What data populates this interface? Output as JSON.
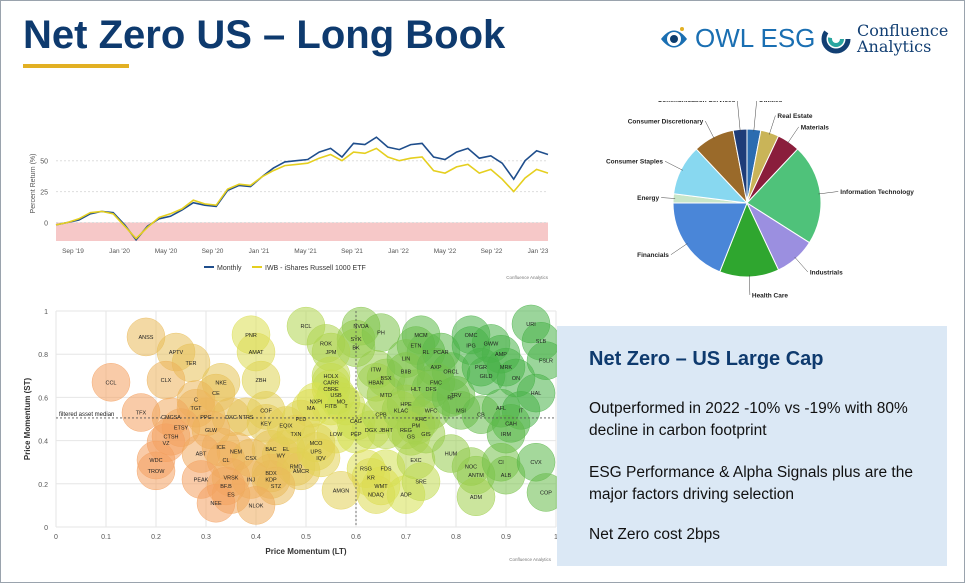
{
  "slide": {
    "title": "Net Zero US – Long Book",
    "logos": {
      "owl": "OWL ESG",
      "confluence_line1": "Confluence",
      "confluence_line2": "Analytics"
    },
    "accent_color": "#e2b023",
    "title_color": "#0e3a6e"
  },
  "textbox": {
    "heading": "Net Zero – US Large Cap",
    "paragraphs": [
      "Outperformed in 2022 -10% vs -19% with 80% decline in carbon footprint",
      "ESG Performance & Alpha Signals plus are the major factors driving selection",
      "Net Zero cost 2bps"
    ]
  },
  "chart_data": [
    {
      "type": "line",
      "ylabel": "Percent Return (%)",
      "y_ticks": [
        "0",
        "25",
        "50"
      ],
      "x_ticks": [
        "Sep '19",
        "Jan '20",
        "May '20",
        "Sep '20",
        "Jan '21",
        "May '21",
        "Sep '21",
        "Jan '22",
        "May '22",
        "Sep '22",
        "Jan '23"
      ],
      "x": [
        "2019-08",
        "2019-09",
        "2019-10",
        "2019-11",
        "2019-12",
        "2020-01",
        "2020-02",
        "2020-03",
        "2020-04",
        "2020-05",
        "2020-06",
        "2020-07",
        "2020-08",
        "2020-09",
        "2020-10",
        "2020-11",
        "2020-12",
        "2021-01",
        "2021-02",
        "2021-03",
        "2021-04",
        "2021-05",
        "2021-06",
        "2021-07",
        "2021-08",
        "2021-09",
        "2021-10",
        "2021-11",
        "2021-12",
        "2022-01",
        "2022-02",
        "2022-03",
        "2022-04",
        "2022-05",
        "2022-06",
        "2022-07",
        "2022-08",
        "2022-09",
        "2022-10",
        "2022-11",
        "2022-12",
        "2023-01",
        "2023-02",
        "2023-03"
      ],
      "series": [
        {
          "name": "Monthly",
          "color": "#1f4e8c",
          "values": [
            -2,
            0,
            2,
            7,
            9,
            8,
            -2,
            -14,
            -3,
            3,
            5,
            10,
            16,
            14,
            13,
            26,
            30,
            29,
            37,
            44,
            49,
            50,
            51,
            57,
            60,
            53,
            64,
            63,
            69,
            61,
            59,
            63,
            64,
            53,
            51,
            57,
            60,
            52,
            54,
            48,
            35,
            50,
            58,
            55
          ]
        },
        {
          "name": "IWB - iShares Russell 1000 ETF",
          "color": "#e5cf1f",
          "values": [
            -2,
            0,
            3,
            8,
            9,
            7,
            -3,
            -13,
            -4,
            4,
            7,
            11,
            18,
            15,
            14,
            27,
            31,
            30,
            37,
            42,
            46,
            47,
            48,
            52,
            55,
            50,
            57,
            56,
            60,
            53,
            50,
            52,
            53,
            42,
            40,
            45,
            47,
            40,
            43,
            35,
            25,
            36,
            43,
            40
          ]
        }
      ],
      "negative_band_color": "#f6c8c8",
      "legend_position": "bottom-center",
      "source_note": "Confluence Analytics"
    },
    {
      "type": "pie",
      "slices": [
        {
          "label": "Utilities",
          "value": 3,
          "color": "#2b6cb0"
        },
        {
          "label": "Real Estate",
          "value": 4,
          "color": "#c9b458"
        },
        {
          "label": "Materials",
          "value": 5,
          "color": "#8a1e3c"
        },
        {
          "label": "Information Technology",
          "value": 22,
          "color": "#4fc27a"
        },
        {
          "label": "Industrials",
          "value": 9,
          "color": "#9b8fe0"
        },
        {
          "label": "Health Care",
          "value": 13,
          "color": "#2fa62f"
        },
        {
          "label": "Financials",
          "value": 19,
          "color": "#4a86d8"
        },
        {
          "label": "Energy",
          "value": 2,
          "color": "#c8e6c9"
        },
        {
          "label": "Consumer Staples",
          "value": 11,
          "color": "#88d8f0"
        },
        {
          "label": "Consumer Discretionary",
          "value": 9,
          "color": "#9a6a2a"
        },
        {
          "label": "Communication Services",
          "value": 3,
          "color": "#1e3c78"
        }
      ]
    },
    {
      "type": "scatter",
      "xlabel": "Price Momentum (LT)",
      "ylabel": "Price Momentum (ST)",
      "xlim": [
        0,
        1
      ],
      "ylim": [
        0,
        1
      ],
      "x_ticks": [
        "0",
        "0.1",
        "0.2",
        "0.3",
        "0.4",
        "0.5",
        "0.6",
        "0.7",
        "0.8",
        "0.9",
        "1"
      ],
      "y_ticks": [
        "0",
        "0.2",
        "0.4",
        "0.6",
        "0.8",
        "1"
      ],
      "median_label": "filtered asset median",
      "median": {
        "x": 0.6,
        "y": 0.505
      },
      "source_note": "Confluence Analytics",
      "points": [
        {
          "t": "ANSS",
          "x": 0.18,
          "y": 0.88
        },
        {
          "t": "APTV",
          "x": 0.24,
          "y": 0.81
        },
        {
          "t": "TER",
          "x": 0.27,
          "y": 0.76
        },
        {
          "t": "CCL",
          "x": 0.11,
          "y": 0.67
        },
        {
          "t": "CLX",
          "x": 0.22,
          "y": 0.68
        },
        {
          "t": "PNR",
          "x": 0.39,
          "y": 0.89
        },
        {
          "t": "AMAT",
          "x": 0.4,
          "y": 0.81
        },
        {
          "t": "NKE",
          "x": 0.33,
          "y": 0.67
        },
        {
          "t": "ZBH",
          "x": 0.41,
          "y": 0.68
        },
        {
          "t": "CE",
          "x": 0.32,
          "y": 0.62
        },
        {
          "t": "C",
          "x": 0.28,
          "y": 0.59
        },
        {
          "t": "TGT",
          "x": 0.28,
          "y": 0.55
        },
        {
          "t": "TFX",
          "x": 0.17,
          "y": 0.53
        },
        {
          "t": "CMCSA",
          "x": 0.23,
          "y": 0.51
        },
        {
          "t": "PPG",
          "x": 0.3,
          "y": 0.51
        },
        {
          "t": "DXC",
          "x": 0.35,
          "y": 0.51
        },
        {
          "t": "NTRS",
          "x": 0.38,
          "y": 0.51
        },
        {
          "t": "COF",
          "x": 0.42,
          "y": 0.54
        },
        {
          "t": "ETSY",
          "x": 0.25,
          "y": 0.46
        },
        {
          "t": "GLW",
          "x": 0.31,
          "y": 0.45
        },
        {
          "t": "KEY",
          "x": 0.42,
          "y": 0.48
        },
        {
          "t": "CTSH",
          "x": 0.23,
          "y": 0.42
        },
        {
          "t": "VZ",
          "x": 0.22,
          "y": 0.39
        },
        {
          "t": "ICE",
          "x": 0.33,
          "y": 0.37
        },
        {
          "t": "NEM",
          "x": 0.36,
          "y": 0.35
        },
        {
          "t": "BAC",
          "x": 0.43,
          "y": 0.36
        },
        {
          "t": "EL",
          "x": 0.46,
          "y": 0.36
        },
        {
          "t": "ABT",
          "x": 0.29,
          "y": 0.34
        },
        {
          "t": "CL",
          "x": 0.34,
          "y": 0.31
        },
        {
          "t": "CSX",
          "x": 0.39,
          "y": 0.32
        },
        {
          "t": "WY",
          "x": 0.45,
          "y": 0.33
        },
        {
          "t": "WDC",
          "x": 0.2,
          "y": 0.31
        },
        {
          "t": "TROW",
          "x": 0.2,
          "y": 0.26
        },
        {
          "t": "PEAK",
          "x": 0.29,
          "y": 0.22
        },
        {
          "t": "VRSK",
          "x": 0.35,
          "y": 0.23
        },
        {
          "t": "INJ",
          "x": 0.39,
          "y": 0.22
        },
        {
          "t": "KDP",
          "x": 0.43,
          "y": 0.22
        },
        {
          "t": "BDX",
          "x": 0.43,
          "y": 0.25
        },
        {
          "t": "RMD",
          "x": 0.48,
          "y": 0.28
        },
        {
          "t": "AMCR",
          "x": 0.49,
          "y": 0.26
        },
        {
          "t": "BF.B",
          "x": 0.34,
          "y": 0.19
        },
        {
          "t": "STZ",
          "x": 0.44,
          "y": 0.19
        },
        {
          "t": "ES",
          "x": 0.35,
          "y": 0.15
        },
        {
          "t": "NEE",
          "x": 0.32,
          "y": 0.11
        },
        {
          "t": "NLOK",
          "x": 0.4,
          "y": 0.1
        },
        {
          "t": "RCL",
          "x": 0.5,
          "y": 0.93
        },
        {
          "t": "NVDA",
          "x": 0.61,
          "y": 0.93
        },
        {
          "t": "ROK",
          "x": 0.54,
          "y": 0.85
        },
        {
          "t": "SYK",
          "x": 0.6,
          "y": 0.87
        },
        {
          "t": "BK",
          "x": 0.6,
          "y": 0.83
        },
        {
          "t": "PH",
          "x": 0.65,
          "y": 0.9
        },
        {
          "t": "JPM",
          "x": 0.55,
          "y": 0.81
        },
        {
          "t": "ITW",
          "x": 0.64,
          "y": 0.73
        },
        {
          "t": "HOLX",
          "x": 0.55,
          "y": 0.7
        },
        {
          "t": "BSX",
          "x": 0.66,
          "y": 0.69
        },
        {
          "t": "CARR",
          "x": 0.55,
          "y": 0.67
        },
        {
          "t": "HBAN",
          "x": 0.64,
          "y": 0.67
        },
        {
          "t": "CBRE",
          "x": 0.55,
          "y": 0.64
        },
        {
          "t": "NXPI",
          "x": 0.52,
          "y": 0.58
        },
        {
          "t": "USB",
          "x": 0.56,
          "y": 0.61
        },
        {
          "t": "MO",
          "x": 0.57,
          "y": 0.58
        },
        {
          "t": "MA",
          "x": 0.51,
          "y": 0.55
        },
        {
          "t": "FITB",
          "x": 0.55,
          "y": 0.56
        },
        {
          "t": "T",
          "x": 0.58,
          "y": 0.56
        },
        {
          "t": "MTD",
          "x": 0.66,
          "y": 0.61
        },
        {
          "t": "EQIX",
          "x": 0.46,
          "y": 0.47
        },
        {
          "t": "PLD",
          "x": 0.49,
          "y": 0.5
        },
        {
          "t": "TXN",
          "x": 0.48,
          "y": 0.43
        },
        {
          "t": "LOW",
          "x": 0.56,
          "y": 0.43
        },
        {
          "t": "PEP",
          "x": 0.6,
          "y": 0.43
        },
        {
          "t": "CAG",
          "x": 0.6,
          "y": 0.49
        },
        {
          "t": "DGX",
          "x": 0.63,
          "y": 0.45
        },
        {
          "t": "CPB",
          "x": 0.65,
          "y": 0.52
        },
        {
          "t": "JBHT",
          "x": 0.66,
          "y": 0.45
        },
        {
          "t": "MCO",
          "x": 0.52,
          "y": 0.39
        },
        {
          "t": "UPS",
          "x": 0.52,
          "y": 0.35
        },
        {
          "t": "IQV",
          "x": 0.53,
          "y": 0.32
        },
        {
          "t": "RSG",
          "x": 0.62,
          "y": 0.27
        },
        {
          "t": "FDS",
          "x": 0.66,
          "y": 0.27
        },
        {
          "t": "KR",
          "x": 0.63,
          "y": 0.23
        },
        {
          "t": "AMGN",
          "x": 0.57,
          "y": 0.17
        },
        {
          "t": "WMT",
          "x": 0.65,
          "y": 0.19
        },
        {
          "t": "NDAQ",
          "x": 0.64,
          "y": 0.15
        },
        {
          "t": "ADP",
          "x": 0.7,
          "y": 0.15
        },
        {
          "t": "SRE",
          "x": 0.73,
          "y": 0.21
        },
        {
          "t": "EXC",
          "x": 0.72,
          "y": 0.31
        },
        {
          "t": "MCM",
          "x": 0.73,
          "y": 0.89
        },
        {
          "t": "ETN",
          "x": 0.72,
          "y": 0.84
        },
        {
          "t": "RL",
          "x": 0.74,
          "y": 0.81
        },
        {
          "t": "PCAR",
          "x": 0.77,
          "y": 0.81
        },
        {
          "t": "LIN",
          "x": 0.7,
          "y": 0.78
        },
        {
          "t": "BIIB",
          "x": 0.7,
          "y": 0.72
        },
        {
          "t": "AXP",
          "x": 0.76,
          "y": 0.74
        },
        {
          "t": "ORCL",
          "x": 0.79,
          "y": 0.72
        },
        {
          "t": "FMC",
          "x": 0.76,
          "y": 0.67
        },
        {
          "t": "HLT",
          "x": 0.72,
          "y": 0.64
        },
        {
          "t": "DFS",
          "x": 0.75,
          "y": 0.64
        },
        {
          "t": "HPE",
          "x": 0.7,
          "y": 0.57
        },
        {
          "t": "KLAC",
          "x": 0.69,
          "y": 0.54
        },
        {
          "t": "WFC",
          "x": 0.75,
          "y": 0.54
        },
        {
          "t": "KHC",
          "x": 0.73,
          "y": 0.5
        },
        {
          "t": "PM",
          "x": 0.72,
          "y": 0.47
        },
        {
          "t": "REG",
          "x": 0.7,
          "y": 0.45
        },
        {
          "t": "GIS",
          "x": 0.74,
          "y": 0.43
        },
        {
          "t": "GS",
          "x": 0.71,
          "y": 0.42
        },
        {
          "t": "RF",
          "x": 0.79,
          "y": 0.6
        },
        {
          "t": "TRV",
          "x": 0.8,
          "y": 0.61
        },
        {
          "t": "MSI",
          "x": 0.81,
          "y": 0.54
        },
        {
          "t": "HUM",
          "x": 0.79,
          "y": 0.34
        },
        {
          "t": "NOC",
          "x": 0.83,
          "y": 0.28
        },
        {
          "t": "ANTM",
          "x": 0.84,
          "y": 0.24
        },
        {
          "t": "ADM",
          "x": 0.84,
          "y": 0.14
        },
        {
          "t": "OMC",
          "x": 0.83,
          "y": 0.89
        },
        {
          "t": "IPG",
          "x": 0.83,
          "y": 0.84
        },
        {
          "t": "GWW",
          "x": 0.87,
          "y": 0.85
        },
        {
          "t": "AMP",
          "x": 0.89,
          "y": 0.8
        },
        {
          "t": "PGR",
          "x": 0.85,
          "y": 0.74
        },
        {
          "t": "MRK",
          "x": 0.9,
          "y": 0.74
        },
        {
          "t": "GILD",
          "x": 0.86,
          "y": 0.7
        },
        {
          "t": "ON",
          "x": 0.92,
          "y": 0.69
        },
        {
          "t": "URI",
          "x": 0.95,
          "y": 0.94
        },
        {
          "t": "SLB",
          "x": 0.97,
          "y": 0.86
        },
        {
          "t": "FSLR",
          "x": 0.98,
          "y": 0.77
        },
        {
          "t": "HAL",
          "x": 0.96,
          "y": 0.62
        },
        {
          "t": "AFL",
          "x": 0.89,
          "y": 0.55
        },
        {
          "t": "CB",
          "x": 0.85,
          "y": 0.52
        },
        {
          "t": "IT",
          "x": 0.93,
          "y": 0.54
        },
        {
          "t": "CAH",
          "x": 0.91,
          "y": 0.48
        },
        {
          "t": "IRM",
          "x": 0.9,
          "y": 0.43
        },
        {
          "t": "CI",
          "x": 0.89,
          "y": 0.3
        },
        {
          "t": "ALB",
          "x": 0.9,
          "y": 0.24
        },
        {
          "t": "CVX",
          "x": 0.96,
          "y": 0.3
        },
        {
          "t": "COP",
          "x": 0.98,
          "y": 0.16
        }
      ]
    }
  ]
}
